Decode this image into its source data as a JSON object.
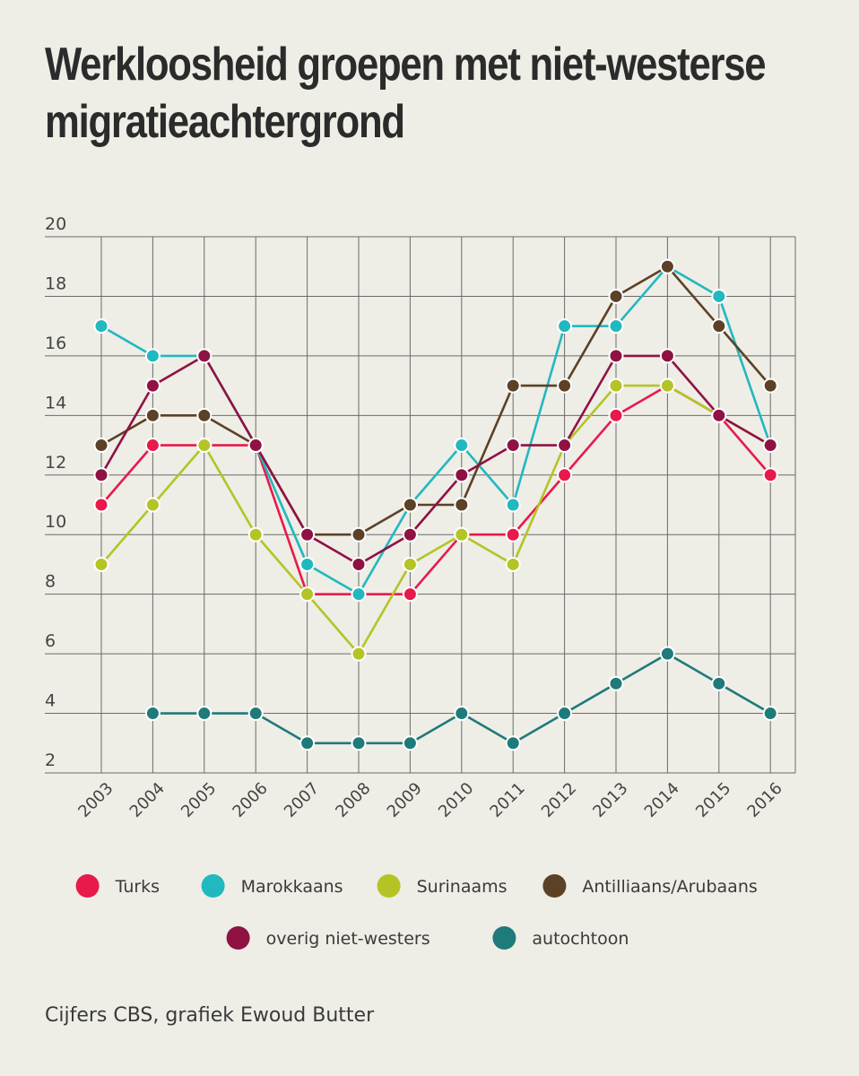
{
  "title_line1": "Werkloosheid groepen met niet-westerse",
  "title_line2": "migratieachtergrond",
  "source": "Cijfers CBS, grafiek Ewoud Butter",
  "chart_data": {
    "type": "line",
    "title": "Werkloosheid groepen met niet-westerse migratieachtergrond",
    "xlabel": "",
    "ylabel": "",
    "x": [
      "2003",
      "2004",
      "2005",
      "2006",
      "2007",
      "2008",
      "2009",
      "2010",
      "2011",
      "2012",
      "2013",
      "2014",
      "2015",
      "2016"
    ],
    "ylim": [
      2,
      20
    ],
    "yticks": [
      2,
      4,
      6,
      8,
      10,
      12,
      14,
      16,
      18,
      20
    ],
    "grid": true,
    "legend_position": "bottom",
    "series": [
      {
        "name": "Turks",
        "color": "#e8194b",
        "values": [
          11,
          13,
          13,
          13,
          8,
          8,
          8,
          10,
          10,
          12,
          14,
          15,
          14,
          12
        ]
      },
      {
        "name": "Marokkaans",
        "color": "#22b8bf",
        "values": [
          17,
          16,
          16,
          13,
          9,
          8,
          11,
          13,
          11,
          17,
          17,
          19,
          18,
          13
        ]
      },
      {
        "name": "Surinaams",
        "color": "#b4c425",
        "values": [
          9,
          11,
          13,
          10,
          8,
          6,
          9,
          10,
          9,
          13,
          15,
          15,
          14,
          13
        ]
      },
      {
        "name": "Antilliaans/Arubaans",
        "color": "#5c4126",
        "values": [
          13,
          14,
          14,
          13,
          10,
          10,
          11,
          11,
          15,
          15,
          18,
          19,
          17,
          15
        ]
      },
      {
        "name": "overig niet-westers",
        "color": "#8f1243",
        "values": [
          12,
          15,
          16,
          13,
          10,
          9,
          10,
          12,
          13,
          13,
          16,
          16,
          14,
          13
        ]
      },
      {
        "name": "autochtoon",
        "color": "#1f7a7a",
        "values": [
          null,
          4,
          4,
          4,
          3,
          3,
          3,
          4,
          3,
          4,
          5,
          6,
          5,
          4
        ]
      }
    ]
  }
}
